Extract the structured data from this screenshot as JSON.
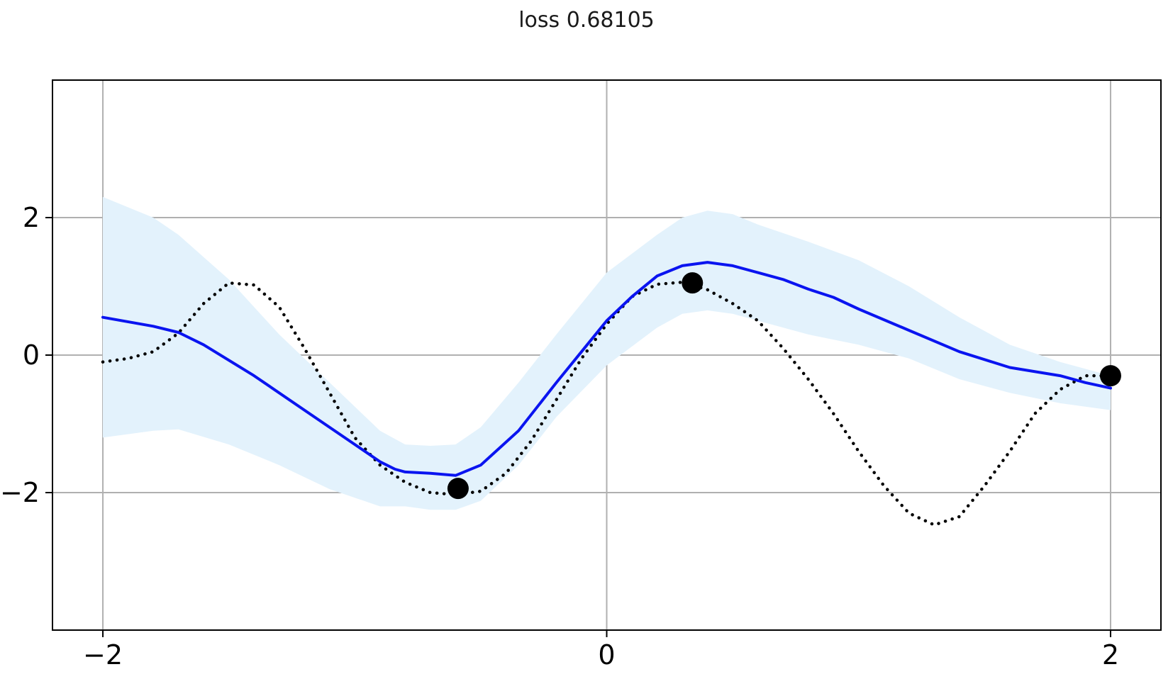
{
  "chart_data": {
    "type": "line",
    "title": "loss 0.68105",
    "xlabel": "",
    "ylabel": "",
    "xlim": [
      -2.2,
      2.2
    ],
    "ylim": [
      -4,
      4
    ],
    "xticks": [
      -2,
      0,
      2
    ],
    "yticks": [
      -2,
      0,
      2
    ],
    "xtick_labels": [
      "−2",
      "0",
      "2"
    ],
    "ytick_labels": [
      "−2",
      "0",
      "2"
    ],
    "grid": true,
    "colors": {
      "mean": "#0a14f0",
      "band": "#e3f2fc",
      "target": "#000000",
      "points": "#000000"
    },
    "series": [
      {
        "style": "solid",
        "x": [
          -2.0,
          -1.8,
          -1.7,
          -1.6,
          -1.4,
          -1.2,
          -1.0,
          -0.9,
          -0.84,
          -0.8,
          -0.7,
          -0.6,
          -0.5,
          -0.35,
          -0.2,
          -0.1,
          0.0,
          0.1,
          0.2,
          0.3,
          0.4,
          0.5,
          0.6,
          0.7,
          0.8,
          0.9,
          1.0,
          1.2,
          1.4,
          1.6,
          1.8,
          1.9,
          2.0
        ],
        "y": [
          0.55,
          0.42,
          0.33,
          0.15,
          -0.3,
          -0.8,
          -1.3,
          -1.55,
          -1.66,
          -1.7,
          -1.72,
          -1.75,
          -1.6,
          -1.1,
          -0.4,
          0.05,
          0.5,
          0.85,
          1.15,
          1.3,
          1.35,
          1.3,
          1.2,
          1.1,
          0.96,
          0.84,
          0.67,
          0.36,
          0.05,
          -0.18,
          -0.3,
          -0.4,
          -0.48
        ]
      },
      {
        "style": "band",
        "x": [
          -2.0,
          -1.8,
          -1.7,
          -1.5,
          -1.3,
          -1.1,
          -0.9,
          -0.8,
          -0.7,
          -0.6,
          -0.5,
          -0.35,
          -0.2,
          0.0,
          0.2,
          0.3,
          0.4,
          0.5,
          0.6,
          0.8,
          1.0,
          1.2,
          1.4,
          1.6,
          1.8,
          2.0
        ],
        "lower": [
          -1.2,
          -1.1,
          -1.08,
          -1.3,
          -1.6,
          -1.95,
          -2.2,
          -2.2,
          -2.25,
          -2.25,
          -2.12,
          -1.6,
          -0.9,
          -0.15,
          0.4,
          0.6,
          0.65,
          0.6,
          0.5,
          0.3,
          0.15,
          -0.05,
          -0.35,
          -0.55,
          -0.7,
          -0.8
        ],
        "upper": [
          2.3,
          2.0,
          1.75,
          1.1,
          0.3,
          -0.4,
          -1.1,
          -1.3,
          -1.32,
          -1.3,
          -1.05,
          -0.4,
          0.3,
          1.2,
          1.75,
          2.0,
          2.1,
          2.05,
          1.9,
          1.65,
          1.38,
          1.0,
          0.55,
          0.15,
          -0.1,
          -0.3
        ]
      },
      {
        "style": "dotted",
        "x": [
          -2.0,
          -1.9,
          -1.8,
          -1.7,
          -1.6,
          -1.5,
          -1.4,
          -1.3,
          -1.2,
          -1.1,
          -1.0,
          -0.9,
          -0.8,
          -0.7,
          -0.6,
          -0.5,
          -0.4,
          -0.3,
          -0.2,
          -0.1,
          0.0,
          0.1,
          0.2,
          0.3,
          0.4,
          0.5,
          0.6,
          0.7,
          0.8,
          0.9,
          1.0,
          1.1,
          1.2,
          1.3,
          1.4,
          1.5,
          1.6,
          1.7,
          1.8,
          1.9,
          2.0
        ],
        "y": [
          -0.1,
          -0.05,
          0.05,
          0.32,
          0.75,
          1.05,
          1.02,
          0.7,
          0.1,
          -0.55,
          -1.2,
          -1.6,
          -1.85,
          -2.0,
          -2.03,
          -1.98,
          -1.72,
          -1.25,
          -0.65,
          -0.05,
          0.45,
          0.85,
          1.03,
          1.06,
          0.95,
          0.75,
          0.5,
          0.1,
          -0.35,
          -0.85,
          -1.4,
          -1.9,
          -2.3,
          -2.47,
          -2.35,
          -1.9,
          -1.4,
          -0.85,
          -0.5,
          -0.3,
          -0.3
        ]
      },
      {
        "style": "scatter",
        "x": [
          -0.59,
          0.34,
          2.0
        ],
        "y": [
          -1.94,
          1.05,
          -0.3
        ]
      }
    ]
  }
}
